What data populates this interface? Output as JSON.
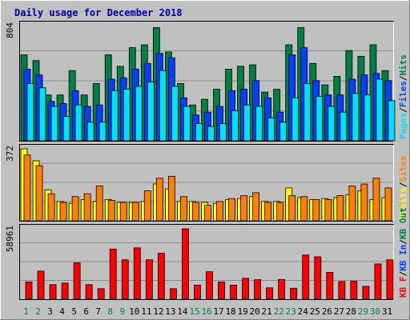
{
  "chart_data": [
    {
      "type": "bar",
      "panel": "pages-files-hits",
      "title": "Daily usage for December 2018",
      "categories": [
        "1",
        "2",
        "3",
        "4",
        "5",
        "6",
        "7",
        "8",
        "9",
        "10",
        "11",
        "12",
        "13",
        "14",
        "15",
        "16",
        "17",
        "18",
        "19",
        "20",
        "21",
        "22",
        "23",
        "24",
        "25",
        "26",
        "27",
        "28",
        "29",
        "30",
        "31"
      ],
      "weekend_days": [
        "1",
        "2",
        "8",
        "9",
        "15",
        "16",
        "22",
        "23",
        "29",
        "30"
      ],
      "ymax_label": "804",
      "ylim": [
        0,
        804
      ],
      "grid": true,
      "legend": [
        "Pages",
        "/",
        "Files",
        "/",
        "Hits"
      ],
      "series": [
        {
          "name": "Hits",
          "color": "#008040",
          "values": [
            600,
            560,
            320,
            320,
            490,
            320,
            400,
            600,
            520,
            650,
            670,
            790,
            620,
            400,
            250,
            290,
            360,
            500,
            520,
            530,
            340,
            360,
            670,
            790,
            540,
            390,
            450,
            630,
            590,
            670,
            490
          ]
        },
        {
          "name": "Files",
          "color": "#0040ff",
          "values": [
            500,
            460,
            275,
            260,
            350,
            240,
            250,
            430,
            440,
            500,
            540,
            610,
            580,
            300,
            180,
            200,
            240,
            350,
            360,
            420,
            300,
            200,
            600,
            650,
            420,
            320,
            320,
            430,
            460,
            470,
            420
          ]
        },
        {
          "name": "Pages",
          "color": "#00e0ff",
          "values": [
            400,
            370,
            240,
            170,
            250,
            130,
            130,
            350,
            360,
            380,
            410,
            490,
            380,
            240,
            120,
            100,
            120,
            210,
            250,
            240,
            160,
            130,
            300,
            400,
            310,
            240,
            200,
            330,
            320,
            430,
            280
          ]
        }
      ]
    },
    {
      "type": "bar",
      "panel": "sites-visits",
      "categories": [
        "1",
        "2",
        "3",
        "4",
        "5",
        "6",
        "7",
        "8",
        "9",
        "10",
        "11",
        "12",
        "13",
        "14",
        "15",
        "16",
        "17",
        "18",
        "19",
        "20",
        "21",
        "22",
        "23",
        "24",
        "25",
        "26",
        "27",
        "28",
        "29",
        "30",
        "31"
      ],
      "ymax_label": "372",
      "ylim": [
        0,
        372
      ],
      "grid": true,
      "legend": [
        "Visits",
        "/",
        "Sites"
      ],
      "series": [
        {
          "name": "Visits",
          "color": "#ffff00",
          "values": [
            372,
            310,
            160,
            100,
            90,
            110,
            100,
            110,
            95,
            95,
            100,
            190,
            165,
            100,
            100,
            95,
            90,
            110,
            115,
            125,
            100,
            100,
            170,
            120,
            110,
            115,
            120,
            135,
            155,
            110,
            120
          ]
        },
        {
          "name": "Sites",
          "color": "#ff8000",
          "values": [
            340,
            285,
            140,
            95,
            125,
            140,
            180,
            105,
            95,
            95,
            155,
            220,
            230,
            125,
            95,
            80,
            100,
            115,
            130,
            145,
            95,
            95,
            130,
            125,
            110,
            110,
            130,
            180,
            190,
            220,
            170
          ]
        }
      ]
    },
    {
      "type": "bar",
      "panel": "kbytes",
      "categories": [
        "1",
        "2",
        "3",
        "4",
        "5",
        "6",
        "7",
        "8",
        "9",
        "10",
        "11",
        "12",
        "13",
        "14",
        "15",
        "16",
        "17",
        "18",
        "19",
        "20",
        "21",
        "22",
        "23",
        "24",
        "25",
        "26",
        "27",
        "28",
        "29",
        "30",
        "31"
      ],
      "ymax_label": "58961",
      "ylim": [
        0,
        58961
      ],
      "grid": true,
      "legend": [
        "KB F",
        "/",
        "KB In",
        "/",
        "KB Out"
      ],
      "series": [
        {
          "name": "KB F",
          "color": "#ff0000",
          "values": [
            14500,
            23500,
            12200,
            13500,
            30500,
            12200,
            8800,
            42000,
            33000,
            43000,
            33000,
            38500,
            8800,
            58961,
            11800,
            23000,
            14500,
            11800,
            17500,
            16300,
            9500,
            16500,
            9200,
            37000,
            35500,
            22500,
            14800,
            15000,
            10800,
            29500,
            33000
          ]
        }
      ]
    }
  ]
}
